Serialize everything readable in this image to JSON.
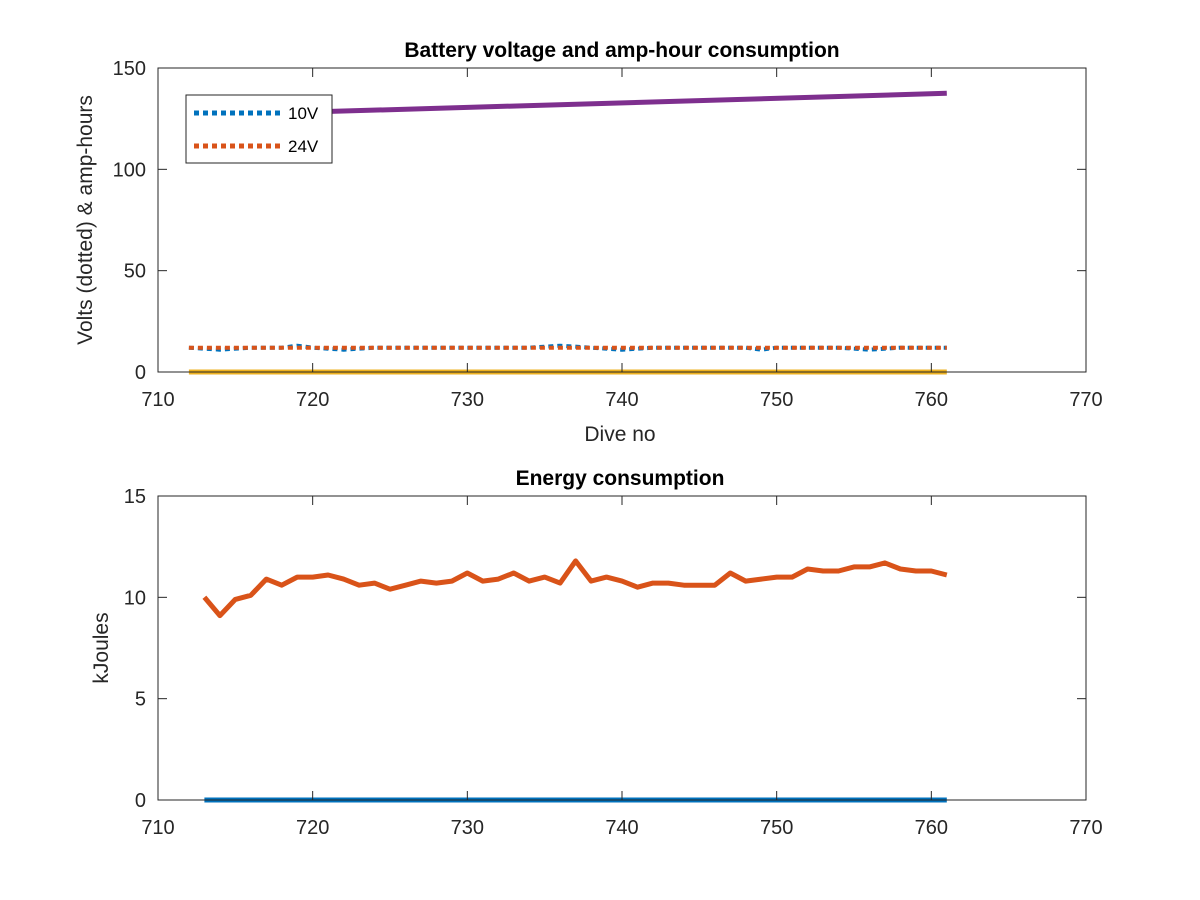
{
  "chart_data": [
    {
      "type": "line",
      "title": "Battery voltage and amp-hour consumption",
      "xlabel": "Dive no",
      "ylabel": "Volts (dotted) & amp-hours",
      "xlim": [
        710,
        770
      ],
      "ylim": [
        0,
        150
      ],
      "xticks": [
        710,
        720,
        730,
        740,
        750,
        760,
        770
      ],
      "yticks": [
        0,
        50,
        100,
        150
      ],
      "grid": false,
      "legend_position": "top-left",
      "legend": [
        "10V",
        "24V"
      ],
      "series": [
        {
          "name": "10V",
          "style": "dotted",
          "color": "#0072BD",
          "x": [
            712,
            714,
            716,
            718,
            719,
            720,
            722,
            724,
            726,
            728,
            730,
            732,
            734,
            736,
            738,
            740,
            742,
            744,
            746,
            748,
            749,
            750,
            752,
            754,
            756,
            758,
            760,
            761
          ],
          "y": [
            12,
            11,
            12,
            12,
            13,
            12,
            11,
            12,
            12,
            12,
            12,
            12,
            12,
            13,
            12,
            11,
            12,
            12,
            12,
            12,
            11,
            12,
            12,
            12,
            11,
            12,
            12,
            12
          ]
        },
        {
          "name": "24V",
          "style": "dotted",
          "color": "#D95319",
          "x": [
            712,
            720,
            730,
            740,
            750,
            761
          ],
          "y": [
            12,
            12,
            12,
            12,
            12,
            12
          ]
        },
        {
          "style": "solid",
          "color": "#EDB120",
          "x": [
            712,
            761
          ],
          "y": [
            0,
            0
          ]
        },
        {
          "style": "solid",
          "color": "#7E2F8E",
          "x": [
            712,
            761
          ],
          "y": [
            126.5,
            137.5
          ]
        }
      ]
    },
    {
      "type": "line",
      "title": "Energy consumption",
      "xlabel": "",
      "ylabel": "kJoules",
      "xlim": [
        710,
        770
      ],
      "ylim": [
        0,
        15
      ],
      "xticks": [
        710,
        720,
        730,
        740,
        750,
        760,
        770
      ],
      "yticks": [
        0,
        5,
        10,
        15
      ],
      "grid": false,
      "series": [
        {
          "style": "solid",
          "color": "#0072BD",
          "x": [
            713,
            761
          ],
          "y": [
            0,
            0
          ]
        },
        {
          "style": "solid",
          "color": "#D95319",
          "x": [
            713,
            714,
            715,
            716,
            717,
            718,
            719,
            720,
            721,
            722,
            723,
            724,
            725,
            726,
            727,
            728,
            729,
            730,
            731,
            732,
            733,
            734,
            735,
            736,
            737,
            738,
            739,
            740,
            741,
            742,
            743,
            744,
            745,
            746,
            747,
            748,
            749,
            750,
            751,
            752,
            753,
            754,
            755,
            756,
            757,
            758,
            759,
            760,
            761
          ],
          "y": [
            10.0,
            9.1,
            9.9,
            10.1,
            10.9,
            10.6,
            11.0,
            11.0,
            11.1,
            10.9,
            10.6,
            10.7,
            10.4,
            10.6,
            10.8,
            10.7,
            10.8,
            11.2,
            10.8,
            10.9,
            11.2,
            10.8,
            11.0,
            10.7,
            11.8,
            10.8,
            11.0,
            10.8,
            10.5,
            10.7,
            10.7,
            10.6,
            10.6,
            10.6,
            11.2,
            10.8,
            10.9,
            11.0,
            11.0,
            11.4,
            11.3,
            11.3,
            11.5,
            11.5,
            11.7,
            11.4,
            11.3,
            11.3,
            11.1
          ]
        }
      ]
    }
  ]
}
